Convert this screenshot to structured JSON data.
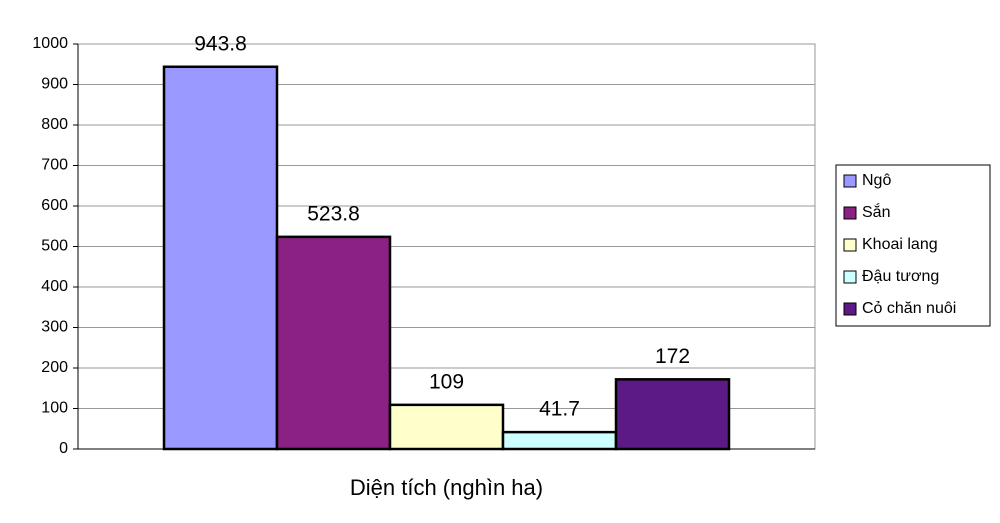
{
  "chart_data": {
    "type": "bar",
    "categories": [
      "Diện tích (nghìn ha)"
    ],
    "series": [
      {
        "name": "Ngô",
        "color": "#9999ff",
        "values": [
          943.8
        ]
      },
      {
        "name": "Sắn",
        "color": "#8b2182",
        "values": [
          523.8
        ]
      },
      {
        "name": "Khoai lang",
        "color": "#ffffcc",
        "values": [
          109
        ]
      },
      {
        "name": "Đậu tương",
        "color": "#ccffff",
        "values": [
          41.7
        ]
      },
      {
        "name": "Cỏ chăn nuôi",
        "color": "#5b1a86",
        "values": [
          172
        ]
      }
    ],
    "ylim": [
      0,
      1000
    ],
    "yticks": [
      0,
      100,
      200,
      300,
      400,
      500,
      600,
      700,
      800,
      900,
      1000
    ],
    "grid": true,
    "legend": "right"
  }
}
